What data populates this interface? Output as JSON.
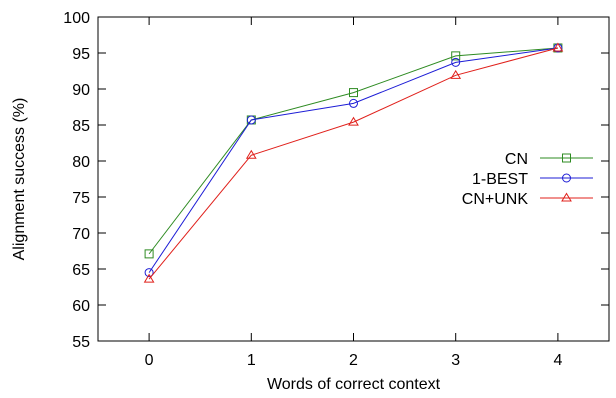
{
  "chart_data": {
    "type": "line",
    "title": "",
    "xlabel": "Words of correct context",
    "ylabel": "Alignment success (%)",
    "x": [
      0,
      1,
      2,
      3,
      4
    ],
    "x_tick_labels": [
      "0",
      "1",
      "2",
      "3",
      "4"
    ],
    "xlim": [
      -0.5,
      4.5
    ],
    "ylim": [
      55,
      100
    ],
    "y_ticks": [
      55,
      60,
      65,
      70,
      75,
      80,
      85,
      90,
      95,
      100
    ],
    "grid": false,
    "legend_position": "right",
    "series": [
      {
        "name": "CN",
        "color": "#2e8b22",
        "marker": "square",
        "values": [
          67.1,
          85.7,
          89.5,
          94.6,
          95.7
        ]
      },
      {
        "name": "1-BEST",
        "color": "#1d1dd6",
        "marker": "circle",
        "values": [
          64.5,
          85.7,
          88.0,
          93.7,
          95.7
        ]
      },
      {
        "name": "CN+UNK",
        "color": "#e0201b",
        "marker": "triangle",
        "values": [
          63.6,
          80.8,
          85.4,
          91.9,
          95.7
        ]
      }
    ]
  }
}
